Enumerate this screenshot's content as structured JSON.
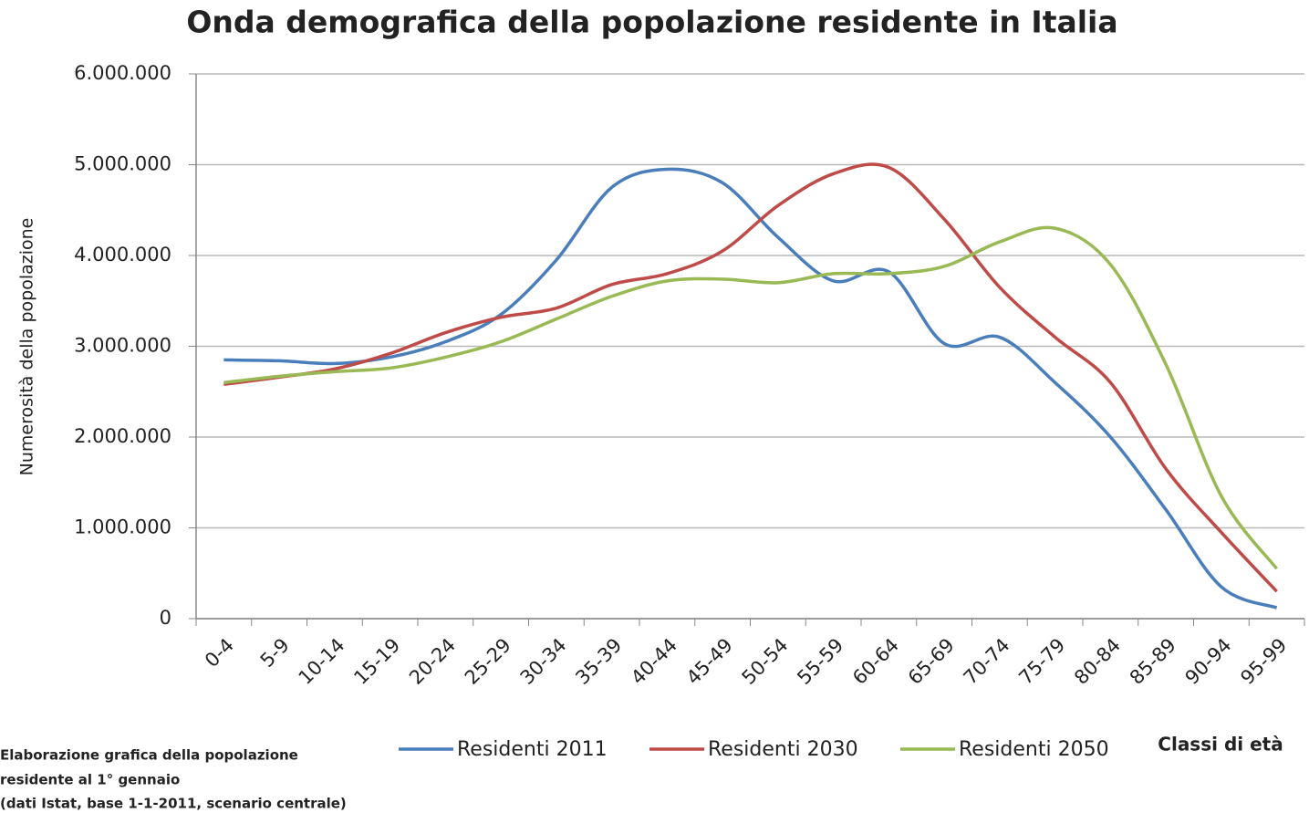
{
  "chart_data": {
    "type": "line",
    "title": "Onda demografica della popolazione residente in Italia",
    "y_label": "Numerosità della popolazione",
    "x_label": "Classi di età",
    "note": [
      "Elaborazione grafica della popolazione",
      "residente al 1° gennaio",
      "(dati Istat, base 1-1-2011, scenario centrale)"
    ],
    "categories": [
      "0-4",
      "5-9",
      "10-14",
      "15-19",
      "20-24",
      "25-29",
      "30-34",
      "35-39",
      "40-44",
      "45-49",
      "50-54",
      "55-59",
      "60-64",
      "65-69",
      "70-74",
      "75-79",
      "80-84",
      "85-89",
      "90-94",
      "95-99"
    ],
    "series": [
      {
        "name": "Residenti 2011",
        "color": "#4a7ebb",
        "values": [
          2850000,
          2840000,
          2810000,
          2880000,
          3050000,
          3350000,
          3950000,
          4750000,
          4950000,
          4800000,
          4200000,
          3720000,
          3820000,
          3030000,
          3100000,
          2600000,
          2000000,
          1200000,
          350000,
          120000
        ]
      },
      {
        "name": "Residenti 2030",
        "color": "#be4b48",
        "values": [
          2580000,
          2660000,
          2750000,
          2920000,
          3150000,
          3320000,
          3420000,
          3680000,
          3800000,
          4050000,
          4550000,
          4900000,
          4970000,
          4400000,
          3650000,
          3100000,
          2600000,
          1650000,
          950000,
          300000
        ]
      },
      {
        "name": "Residenti 2050",
        "color": "#98b954",
        "values": [
          2600000,
          2670000,
          2720000,
          2760000,
          2880000,
          3050000,
          3300000,
          3550000,
          3720000,
          3740000,
          3700000,
          3800000,
          3800000,
          3880000,
          4150000,
          4300000,
          3900000,
          2800000,
          1350000,
          550000
        ]
      }
    ],
    "ylim": [
      0,
      6000000
    ],
    "yticks": [
      0,
      {
        "value": 1000000,
        "label": "1.000.000"
      },
      {
        "value": 2000000,
        "label": "2.000.000"
      },
      {
        "value": 3000000,
        "label": "3.000.000"
      },
      {
        "value": 4000000,
        "label": "4.000.000"
      },
      {
        "value": 5000000,
        "label": "5.000.000"
      },
      {
        "value": 6000000,
        "label": "6.000.000"
      }
    ],
    "grid": true
  }
}
